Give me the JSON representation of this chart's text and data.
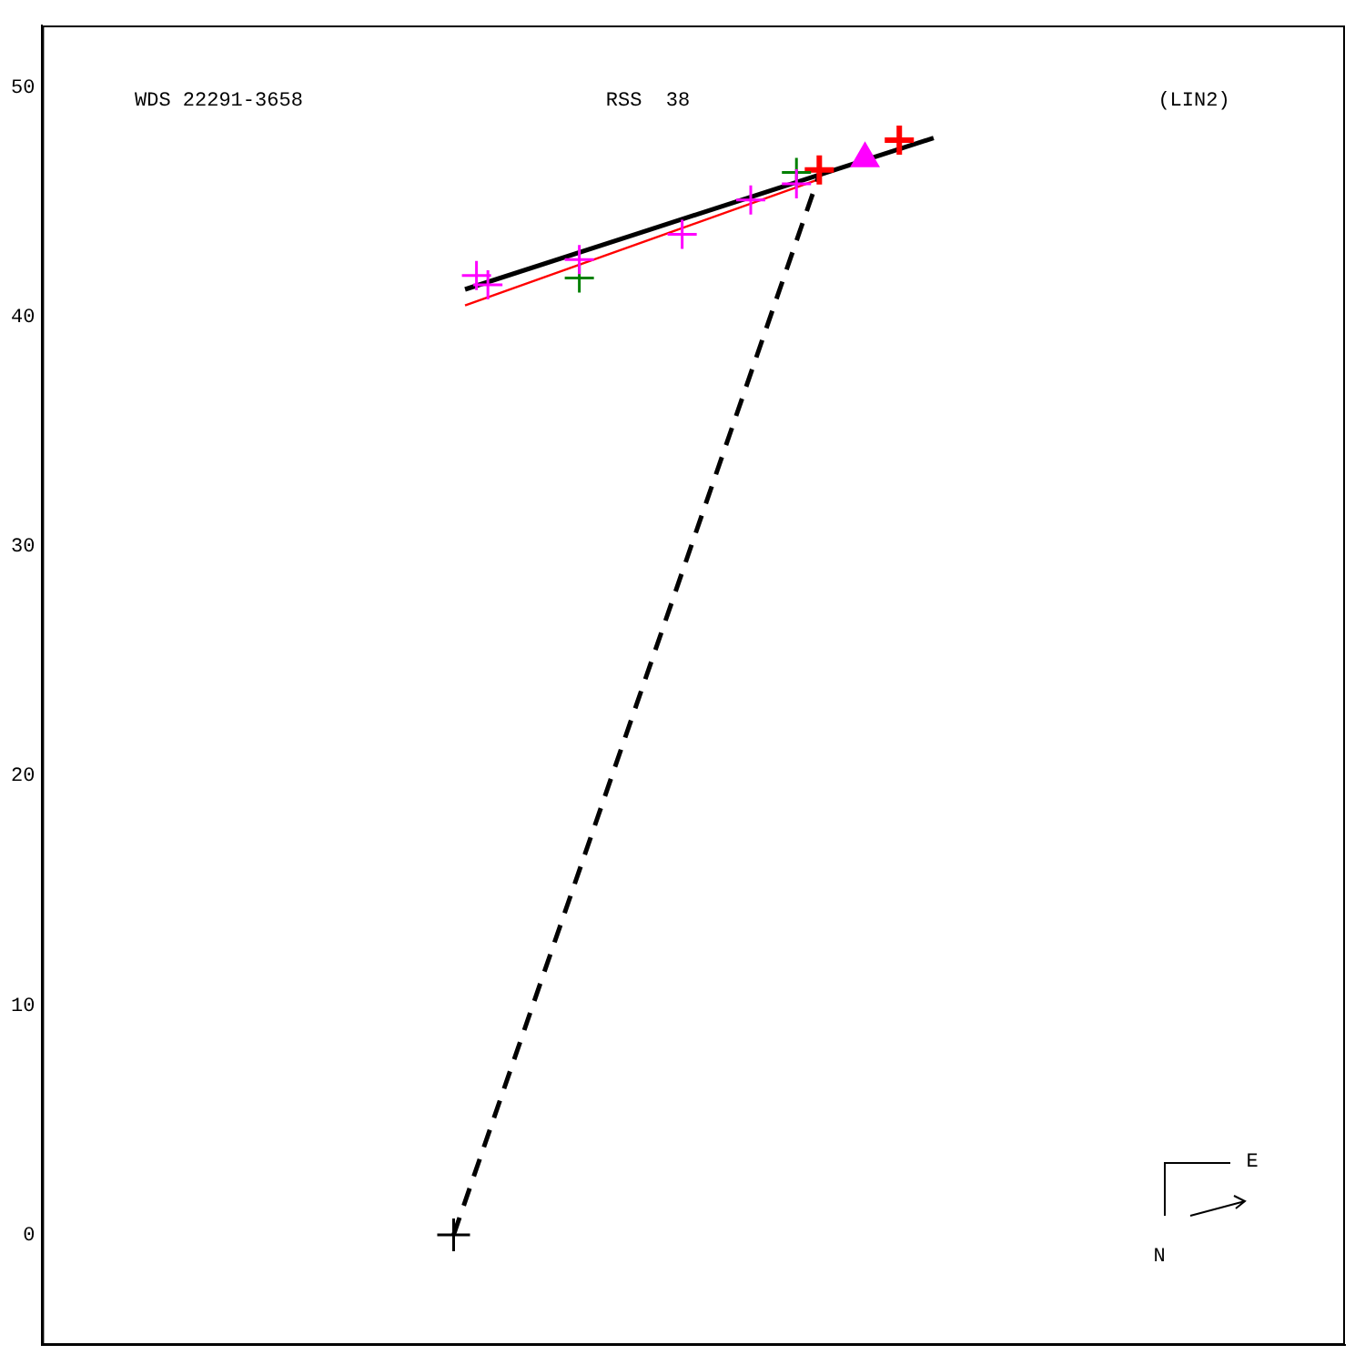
{
  "chart_data": {
    "type": "scatter",
    "ylim": [
      -4.8,
      52.7
    ],
    "yticks": [
      0,
      10,
      20,
      30,
      40,
      50
    ],
    "tick_labels": "y",
    "grid": false,
    "legend": false,
    "annotations": [
      "WDS 22291-3658",
      "RSS  38",
      "(LIN2)",
      "N",
      "E"
    ],
    "categories": [
      null,
      null,
      null,
      null,
      null,
      null,
      null,
      null,
      null,
      null,
      null,
      null,
      null,
      null,
      null,
      null,
      null,
      null,
      null,
      null,
      null,
      null,
      null,
      null,
      null,
      null,
      null,
      null,
      null,
      null,
      null,
      null,
      null,
      null,
      null,
      null,
      null,
      null,
      null,
      null,
      null,
      null,
      null,
      null,
      null,
      null,
      null,
      null,
      null,
      null,
      null,
      null,
      null,
      null,
      null,
      null,
      null,
      null,
      null,
      null,
      null,
      null,
      null,
      null,
      null,
      null,
      null,
      null,
      null,
      null,
      null,
      null,
      null,
      null,
      null,
      null,
      null,
      null,
      null,
      null,
      null,
      null,
      null,
      null,
      null,
      null,
      null,
      null,
      null,
      null,
      null,
      null,
      null,
      null,
      null,
      null,
      null,
      null,
      null,
      null,
      null,
      null,
      null,
      null,
      null,
      null,
      null,
      null,
      null,
      null,
      null,
      null,
      null,
      null,
      null
    ],
    "series": [
      {
        "type": "line",
        "color": "#000000",
        "line_style": "dashed",
        "marker": "none",
        "values": [
          null,
          null,
          null,
          null,
          null,
          null,
          null,
          null,
          null,
          null,
          null,
          null,
          null,
          null,
          null,
          null,
          null,
          null,
          null,
          null,
          null,
          null,
          null,
          null,
          null,
          null,
          null,
          null,
          null,
          null,
          null,
          null,
          null,
          null,
          null,
          null,
          0,
          null,
          null,
          null,
          null,
          null,
          null,
          null,
          null,
          null,
          null,
          null,
          null,
          null,
          null,
          null,
          null,
          null,
          null,
          null,
          null,
          null,
          null,
          null,
          null,
          null,
          null,
          null,
          null,
          null,
          null,
          null,
          46.2,
          null,
          null,
          null,
          null,
          null,
          null,
          null,
          null,
          null,
          null,
          null,
          null,
          null,
          null,
          null,
          null,
          null,
          null,
          null,
          null,
          null,
          null,
          null,
          null,
          null,
          null,
          null,
          null,
          null,
          null,
          null,
          null,
          null,
          null,
          null,
          null,
          null,
          null,
          null,
          null,
          null,
          null,
          null,
          null,
          null,
          null
        ]
      },
      {
        "type": "line",
        "color": "#000000",
        "line_style": "solid",
        "marker": "none",
        "values": [
          null,
          null,
          null,
          null,
          null,
          null,
          null,
          null,
          null,
          null,
          null,
          null,
          null,
          null,
          null,
          null,
          null,
          null,
          null,
          null,
          null,
          null,
          null,
          null,
          null,
          null,
          null,
          null,
          null,
          null,
          null,
          null,
          null,
          null,
          null,
          null,
          null,
          41.2,
          null,
          null,
          null,
          null,
          null,
          null,
          null,
          null,
          null,
          null,
          null,
          null,
          null,
          null,
          null,
          null,
          null,
          null,
          null,
          null,
          null,
          null,
          null,
          null,
          null,
          null,
          null,
          null,
          null,
          null,
          null,
          null,
          null,
          null,
          null,
          null,
          null,
          null,
          null,
          null,
          47.8,
          null,
          null,
          null,
          null,
          null,
          null,
          null,
          null,
          null,
          null,
          null,
          null,
          null,
          null,
          null,
          null,
          null,
          null,
          null,
          null,
          null,
          null,
          null,
          null,
          null,
          null,
          null,
          null,
          null,
          null,
          null,
          null,
          null,
          null,
          null,
          null
        ]
      },
      {
        "type": "line",
        "color": "#ff0000",
        "line_style": "solid",
        "marker": "none",
        "values": [
          null,
          null,
          null,
          null,
          null,
          null,
          null,
          null,
          null,
          null,
          null,
          null,
          null,
          null,
          null,
          null,
          null,
          null,
          null,
          null,
          null,
          null,
          null,
          null,
          null,
          null,
          null,
          null,
          null,
          null,
          null,
          null,
          null,
          null,
          null,
          null,
          null,
          40.5,
          null,
          null,
          null,
          null,
          null,
          null,
          null,
          null,
          null,
          null,
          null,
          null,
          null,
          null,
          null,
          null,
          null,
          null,
          null,
          null,
          null,
          null,
          null,
          null,
          null,
          null,
          null,
          null,
          null,
          null,
          46.0,
          null,
          null,
          null,
          null,
          null,
          null,
          null,
          null,
          null,
          null,
          null,
          null,
          null,
          null,
          null,
          null,
          null,
          null,
          null,
          null,
          null,
          null,
          null,
          null,
          null,
          null,
          null,
          null,
          null,
          null,
          null,
          null,
          null,
          null,
          null,
          null,
          null,
          null,
          null,
          null,
          null,
          null,
          null,
          null,
          null,
          null
        ]
      },
      {
        "type": "scatter",
        "color": "#ff00ff",
        "marker": "cross",
        "values": [
          null,
          null,
          null,
          null,
          null,
          null,
          null,
          null,
          null,
          null,
          null,
          null,
          null,
          null,
          null,
          null,
          null,
          null,
          null,
          null,
          null,
          null,
          null,
          null,
          null,
          null,
          null,
          null,
          null,
          null,
          null,
          null,
          null,
          null,
          null,
          null,
          null,
          null,
          41.8,
          41.4,
          null,
          null,
          null,
          null,
          null,
          null,
          null,
          42.5,
          null,
          null,
          null,
          null,
          null,
          null,
          null,
          null,
          43.6,
          null,
          null,
          null,
          null,
          null,
          45.1,
          null,
          null,
          null,
          45.8,
          null,
          null,
          null,
          null,
          null,
          null,
          null,
          null,
          null,
          null,
          null,
          null,
          null,
          null,
          null,
          null,
          null,
          null,
          null,
          null,
          null,
          null,
          null,
          null,
          null,
          null,
          null,
          null,
          null,
          null,
          null,
          null,
          null,
          null,
          null,
          null,
          null,
          null,
          null,
          null,
          null,
          null,
          null,
          null,
          null,
          null,
          null,
          null
        ]
      },
      {
        "type": "scatter",
        "color": "#008000",
        "marker": "cross",
        "values": [
          null,
          null,
          null,
          null,
          null,
          null,
          null,
          null,
          null,
          null,
          null,
          null,
          null,
          null,
          null,
          null,
          null,
          null,
          null,
          null,
          null,
          null,
          null,
          null,
          null,
          null,
          null,
          null,
          null,
          null,
          null,
          null,
          null,
          null,
          null,
          null,
          null,
          null,
          null,
          null,
          null,
          null,
          null,
          null,
          null,
          null,
          null,
          41.7,
          null,
          null,
          null,
          null,
          null,
          null,
          null,
          null,
          null,
          null,
          null,
          null,
          null,
          null,
          null,
          null,
          null,
          null,
          46.3,
          null,
          null,
          null,
          null,
          null,
          null,
          null,
          null,
          null,
          null,
          null,
          null,
          null,
          null,
          null,
          null,
          null,
          null,
          null,
          null,
          null,
          null,
          null,
          null,
          null,
          null,
          null,
          null,
          null,
          null,
          null,
          null,
          null,
          null,
          null,
          null,
          null,
          null,
          null,
          null,
          null,
          null,
          null,
          null,
          null,
          null,
          null,
          null
        ]
      },
      {
        "type": "scatter",
        "color": "#ff00ff",
        "marker": "triangle",
        "values": [
          null,
          null,
          null,
          null,
          null,
          null,
          null,
          null,
          null,
          null,
          null,
          null,
          null,
          null,
          null,
          null,
          null,
          null,
          null,
          null,
          null,
          null,
          null,
          null,
          null,
          null,
          null,
          null,
          null,
          null,
          null,
          null,
          null,
          null,
          null,
          null,
          null,
          null,
          null,
          null,
          null,
          null,
          null,
          null,
          null,
          null,
          null,
          null,
          null,
          null,
          null,
          null,
          null,
          null,
          null,
          null,
          null,
          null,
          null,
          null,
          null,
          null,
          null,
          null,
          null,
          null,
          null,
          null,
          null,
          null,
          null,
          null,
          46.9,
          null,
          null,
          null,
          null,
          null,
          null,
          null,
          null,
          null,
          null,
          null,
          null,
          null,
          null,
          null,
          null,
          null,
          null,
          null,
          null,
          null,
          null,
          null,
          null,
          null,
          null,
          null,
          null,
          null,
          null,
          null,
          null,
          null,
          null,
          null,
          null,
          null,
          null,
          null,
          null,
          null,
          null
        ]
      },
      {
        "type": "scatter",
        "color": "#ff0000",
        "marker": "cross",
        "values": [
          null,
          null,
          null,
          null,
          null,
          null,
          null,
          null,
          null,
          null,
          null,
          null,
          null,
          null,
          null,
          null,
          null,
          null,
          null,
          null,
          null,
          null,
          null,
          null,
          null,
          null,
          null,
          null,
          null,
          null,
          null,
          null,
          null,
          null,
          null,
          null,
          null,
          null,
          null,
          null,
          null,
          null,
          null,
          null,
          null,
          null,
          null,
          null,
          null,
          null,
          null,
          null,
          null,
          null,
          null,
          null,
          null,
          null,
          null,
          null,
          null,
          null,
          null,
          null,
          null,
          null,
          null,
          null,
          46.4,
          null,
          null,
          null,
          null,
          null,
          null,
          47.7,
          null,
          null,
          null,
          null,
          null,
          null,
          null,
          null,
          null,
          null,
          null,
          null,
          null,
          null,
          null,
          null,
          null,
          null,
          null,
          null,
          null,
          null,
          null,
          null,
          null,
          null,
          null,
          null,
          null,
          null,
          null,
          null,
          null,
          null,
          null,
          null,
          null,
          null,
          null
        ]
      },
      {
        "type": "scatter",
        "color": "#000000",
        "marker": "cross",
        "values": [
          null,
          null,
          null,
          null,
          null,
          null,
          null,
          null,
          null,
          null,
          null,
          null,
          null,
          null,
          null,
          null,
          null,
          null,
          null,
          null,
          null,
          null,
          null,
          null,
          null,
          null,
          null,
          null,
          null,
          null,
          null,
          null,
          null,
          null,
          null,
          null,
          0,
          null,
          null,
          null,
          null,
          null,
          null,
          null,
          null,
          null,
          null,
          null,
          null,
          null,
          null,
          null,
          null,
          null,
          null,
          null,
          null,
          null,
          null,
          null,
          null,
          null,
          null,
          null,
          null,
          null,
          null,
          null,
          null,
          null,
          null,
          null,
          null,
          null,
          null,
          null,
          null,
          null,
          null,
          null,
          null,
          null,
          null,
          null,
          null,
          null,
          null,
          null,
          null,
          null,
          null,
          null,
          null,
          null,
          null,
          null,
          null,
          null,
          null,
          null,
          null,
          null,
          null,
          null,
          null,
          null,
          null,
          null,
          null,
          null,
          null,
          null,
          null,
          null,
          null
        ]
      }
    ]
  }
}
